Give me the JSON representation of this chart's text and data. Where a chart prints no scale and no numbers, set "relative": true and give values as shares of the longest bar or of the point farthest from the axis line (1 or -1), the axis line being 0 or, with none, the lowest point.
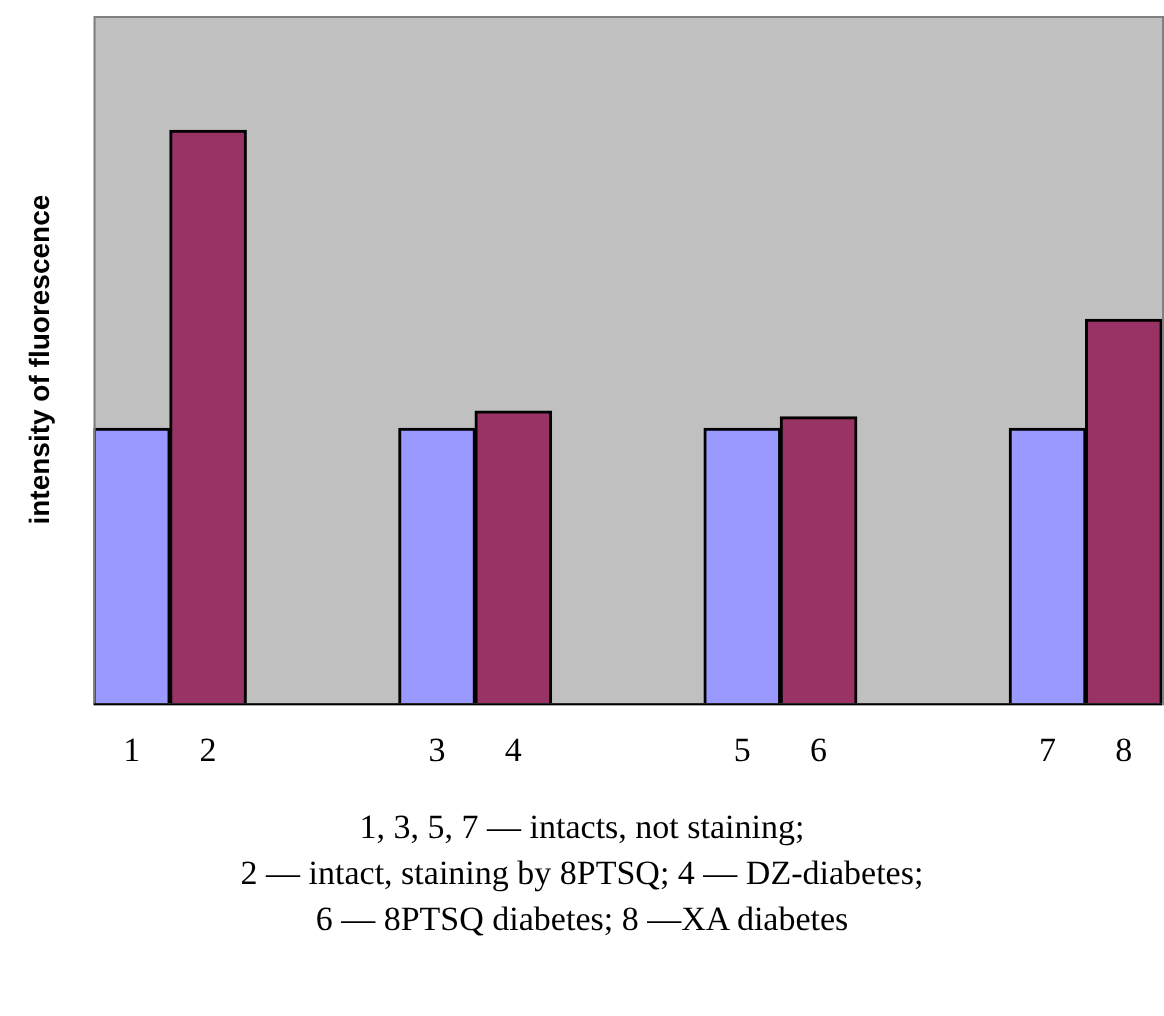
{
  "chart_data": {
    "type": "bar",
    "relative": true,
    "ylabel": "intensity of fluorescence",
    "categories": [
      "1",
      "2",
      null,
      null,
      "3",
      "4",
      null,
      null,
      "5",
      "6",
      null,
      null,
      "7",
      "8"
    ],
    "values": [
      0.48,
      1,
      null,
      null,
      0.48,
      0.51,
      null,
      null,
      0.48,
      0.5,
      null,
      null,
      0.48,
      0.67
    ],
    "colors": [
      "#9999ff",
      "#993366",
      null,
      null,
      "#9999ff",
      "#993366",
      null,
      null,
      "#9999ff",
      "#993366",
      null,
      null,
      "#9999ff",
      "#993366"
    ],
    "grid": false,
    "legend": false,
    "annotations": [
      "1, 3, 5, 7 — intacts, not staining;",
      "2 — intact, staining by 8PTSQ; 4 — DZ-diabetes;",
      "6 — 8PTSQ diabetes; 8 —XA diabetes"
    ]
  }
}
